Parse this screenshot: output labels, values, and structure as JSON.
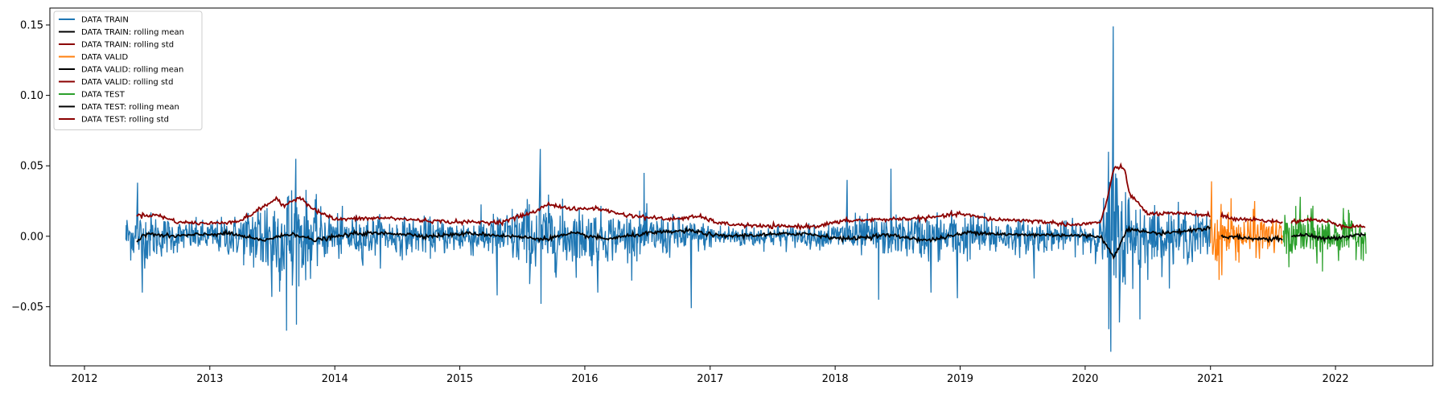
{
  "chart_data": {
    "type": "line",
    "title": "",
    "xlabel": "",
    "ylabel": "",
    "xlim": [
      "2011-09-22",
      "2022-10-12"
    ],
    "ylim": [
      -0.092,
      0.162
    ],
    "x_ticks": [
      "2012",
      "2013",
      "2014",
      "2015",
      "2016",
      "2017",
      "2018",
      "2019",
      "2020",
      "2021",
      "2022"
    ],
    "y_ticks": [
      {
        "value": -0.05,
        "label": "−0.05"
      },
      {
        "value": 0.0,
        "label": "0.00"
      },
      {
        "value": 0.05,
        "label": "0.05"
      },
      {
        "value": 0.1,
        "label": "0.10"
      },
      {
        "value": 0.15,
        "label": "0.15"
      }
    ],
    "grid": false,
    "legend_position": "upper-left",
    "series": [
      {
        "name": "DATA TRAIN",
        "color": "#1f77b4",
        "kind": "noisy",
        "start": "2012-05-01",
        "end": "2020-12-31",
        "envelope": [
          [
            "2012-05-01",
            0.015
          ],
          [
            "2012-07-01",
            0.016
          ],
          [
            "2012-10-01",
            0.01
          ],
          [
            "2013-01-01",
            0.01
          ],
          [
            "2013-04-01",
            0.014
          ],
          [
            "2013-06-01",
            0.03
          ],
          [
            "2013-09-01",
            0.035
          ],
          [
            "2013-12-01",
            0.015
          ],
          [
            "2014-06-01",
            0.012
          ],
          [
            "2014-12-01",
            0.011
          ],
          [
            "2015-04-01",
            0.013
          ],
          [
            "2015-08-01",
            0.024
          ],
          [
            "2015-11-01",
            0.02
          ],
          [
            "2016-04-01",
            0.015
          ],
          [
            "2016-10-01",
            0.012
          ],
          [
            "2017-01-01",
            0.008
          ],
          [
            "2017-06-01",
            0.007
          ],
          [
            "2017-12-01",
            0.007
          ],
          [
            "2018-03-01",
            0.013
          ],
          [
            "2018-06-01",
            0.012
          ],
          [
            "2018-12-01",
            0.016
          ],
          [
            "2019-06-01",
            0.011
          ],
          [
            "2019-12-01",
            0.009
          ],
          [
            "2020-02-15",
            0.012
          ],
          [
            "2020-03-20",
            0.05
          ],
          [
            "2020-05-01",
            0.035
          ],
          [
            "2020-07-01",
            0.02
          ],
          [
            "2020-12-31",
            0.014
          ]
        ],
        "spikes": [
          [
            "2012-06-05",
            0.038
          ],
          [
            "2012-06-20",
            -0.04
          ],
          [
            "2013-07-01",
            -0.043
          ],
          [
            "2013-08-15",
            -0.067
          ],
          [
            "2013-09-10",
            0.055
          ],
          [
            "2013-09-01",
            -0.035
          ],
          [
            "2015-04-20",
            -0.042
          ],
          [
            "2015-08-24",
            0.062
          ],
          [
            "2015-08-28",
            -0.048
          ],
          [
            "2016-06-24",
            0.045
          ],
          [
            "2016-11-09",
            -0.051
          ],
          [
            "2016-02-10",
            -0.04
          ],
          [
            "2018-02-05",
            0.04
          ],
          [
            "2018-05-10",
            -0.045
          ],
          [
            "2018-06-15",
            0.048
          ],
          [
            "2018-10-10",
            -0.04
          ],
          [
            "2018-12-24",
            -0.044
          ],
          [
            "2019-08-05",
            -0.03
          ],
          [
            "2020-03-16",
            -0.082
          ],
          [
            "2020-03-24",
            0.149
          ],
          [
            "2020-03-12",
            -0.066
          ],
          [
            "2020-06-11",
            -0.059
          ],
          [
            "2020-03-09",
            0.06
          ]
        ]
      },
      {
        "name": "DATA TRAIN: rolling mean",
        "color": "#000000",
        "kind": "smooth",
        "points": [
          [
            "2012-06-01",
            -0.004
          ],
          [
            "2012-07-01",
            0.002
          ],
          [
            "2012-09-01",
            0.0
          ],
          [
            "2012-12-01",
            0.001
          ],
          [
            "2013-03-01",
            0.002
          ],
          [
            "2013-06-01",
            -0.003
          ],
          [
            "2013-09-01",
            0.002
          ],
          [
            "2013-11-01",
            -0.003
          ],
          [
            "2014-03-01",
            0.002
          ],
          [
            "2014-07-01",
            0.002
          ],
          [
            "2014-10-01",
            0.0
          ],
          [
            "2015-02-01",
            0.002
          ],
          [
            "2015-06-01",
            0.0
          ],
          [
            "2015-09-01",
            -0.002
          ],
          [
            "2015-12-01",
            0.002
          ],
          [
            "2016-03-01",
            -0.002
          ],
          [
            "2016-07-01",
            0.002
          ],
          [
            "2016-11-01",
            0.004
          ],
          [
            "2017-02-01",
            0.0
          ],
          [
            "2017-06-01",
            0.001
          ],
          [
            "2017-10-01",
            0.002
          ],
          [
            "2018-02-01",
            -0.002
          ],
          [
            "2018-06-01",
            0.001
          ],
          [
            "2018-10-01",
            -0.003
          ],
          [
            "2019-02-01",
            0.003
          ],
          [
            "2019-06-01",
            0.001
          ],
          [
            "2019-10-01",
            0.001
          ],
          [
            "2020-02-15",
            0.0
          ],
          [
            "2020-03-25",
            -0.015
          ],
          [
            "2020-05-01",
            0.005
          ],
          [
            "2020-08-01",
            0.002
          ],
          [
            "2020-11-01",
            0.004
          ],
          [
            "2020-12-31",
            0.006
          ]
        ]
      },
      {
        "name": "DATA TRAIN: rolling std",
        "color": "#8b0000",
        "kind": "smooth",
        "points": [
          [
            "2012-06-01",
            0.015
          ],
          [
            "2012-08-01",
            0.015
          ],
          [
            "2012-10-01",
            0.01
          ],
          [
            "2013-01-01",
            0.009
          ],
          [
            "2013-04-01",
            0.011
          ],
          [
            "2013-06-01",
            0.02
          ],
          [
            "2013-07-15",
            0.027
          ],
          [
            "2013-08-01",
            0.021
          ],
          [
            "2013-09-20",
            0.028
          ],
          [
            "2013-11-01",
            0.019
          ],
          [
            "2014-01-01",
            0.012
          ],
          [
            "2014-06-01",
            0.013
          ],
          [
            "2014-10-01",
            0.011
          ],
          [
            "2015-01-01",
            0.01
          ],
          [
            "2015-05-01",
            0.01
          ],
          [
            "2015-08-15",
            0.018
          ],
          [
            "2015-09-15",
            0.023
          ],
          [
            "2015-12-01",
            0.019
          ],
          [
            "2016-02-01",
            0.02
          ],
          [
            "2016-05-01",
            0.015
          ],
          [
            "2016-09-01",
            0.012
          ],
          [
            "2016-12-01",
            0.014
          ],
          [
            "2017-02-01",
            0.009
          ],
          [
            "2017-06-01",
            0.007
          ],
          [
            "2017-11-01",
            0.007
          ],
          [
            "2018-02-01",
            0.011
          ],
          [
            "2018-06-01",
            0.012
          ],
          [
            "2018-10-01",
            0.013
          ],
          [
            "2019-01-01",
            0.016
          ],
          [
            "2019-04-01",
            0.012
          ],
          [
            "2019-08-01",
            0.011
          ],
          [
            "2019-12-01",
            0.008
          ],
          [
            "2020-02-15",
            0.01
          ],
          [
            "2020-03-10",
            0.03
          ],
          [
            "2020-03-25",
            0.049
          ],
          [
            "2020-04-25",
            0.048
          ],
          [
            "2020-05-10",
            0.03
          ],
          [
            "2020-07-01",
            0.016
          ],
          [
            "2020-10-01",
            0.016
          ],
          [
            "2020-12-31",
            0.015
          ]
        ]
      },
      {
        "name": "DATA VALID",
        "color": "#ff7f0e",
        "kind": "noisy",
        "start": "2021-01-01",
        "end": "2021-08-01",
        "envelope": [
          [
            "2021-01-01",
            0.02
          ],
          [
            "2021-03-01",
            0.015
          ],
          [
            "2021-08-01",
            0.01
          ]
        ],
        "spikes": [
          [
            "2021-01-06",
            0.039
          ],
          [
            "2021-01-28",
            -0.031
          ],
          [
            "2021-03-04",
            0.027
          ],
          [
            "2021-05-12",
            0.025
          ]
        ]
      },
      {
        "name": "DATA VALID: rolling mean",
        "color": "#000000",
        "kind": "smooth",
        "points": [
          [
            "2021-02-01",
            0.0
          ],
          [
            "2021-04-01",
            -0.001
          ],
          [
            "2021-06-01",
            -0.002
          ],
          [
            "2021-08-01",
            -0.002
          ]
        ]
      },
      {
        "name": "DATA VALID: rolling std",
        "color": "#8b0000",
        "kind": "smooth",
        "points": [
          [
            "2021-02-01",
            0.015
          ],
          [
            "2021-03-15",
            0.012
          ],
          [
            "2021-05-01",
            0.012
          ],
          [
            "2021-08-01",
            0.01
          ]
        ]
      },
      {
        "name": "DATA TEST",
        "color": "#2ca02c",
        "kind": "noisy",
        "start": "2021-08-01",
        "end": "2022-03-31",
        "envelope": [
          [
            "2021-08-01",
            0.012
          ],
          [
            "2021-10-01",
            0.016
          ],
          [
            "2022-01-01",
            0.013
          ],
          [
            "2022-03-31",
            0.012
          ]
        ],
        "spikes": [
          [
            "2021-09-20",
            0.028
          ],
          [
            "2021-08-20",
            -0.022
          ],
          [
            "2021-11-26",
            -0.025
          ],
          [
            "2022-01-25",
            0.02
          ]
        ]
      },
      {
        "name": "DATA TEST: rolling mean",
        "color": "#000000",
        "kind": "smooth",
        "points": [
          [
            "2021-08-25",
            0.0
          ],
          [
            "2021-10-01",
            0.001
          ],
          [
            "2021-12-01",
            -0.002
          ],
          [
            "2022-02-01",
            0.0
          ],
          [
            "2022-03-31",
            0.002
          ]
        ]
      },
      {
        "name": "DATA TEST: rolling std",
        "color": "#8b0000",
        "kind": "smooth",
        "points": [
          [
            "2021-08-25",
            0.01
          ],
          [
            "2021-10-15",
            0.012
          ],
          [
            "2021-12-15",
            0.01
          ],
          [
            "2022-02-01",
            0.007
          ],
          [
            "2022-03-31",
            0.007
          ]
        ]
      }
    ]
  }
}
